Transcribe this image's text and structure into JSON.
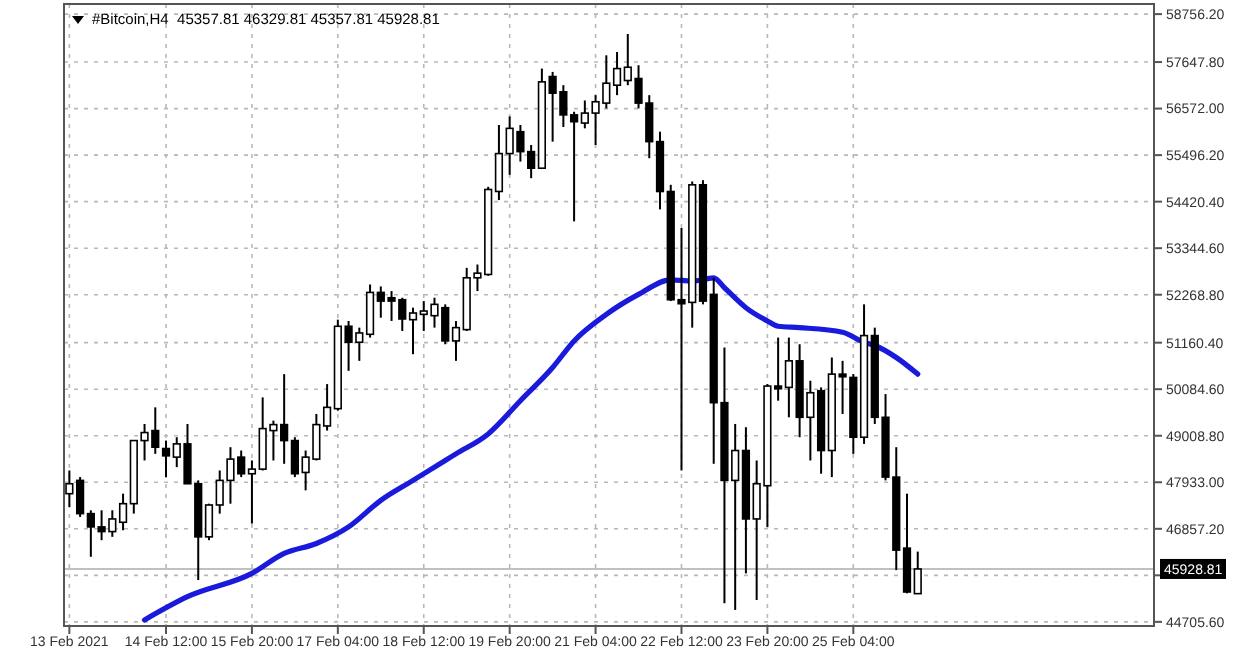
{
  "chart_data": {
    "type": "candlestick",
    "title": "#Bitcoin,H4  45357.81 46329.81 45357.81 45928.81",
    "x": [
      "2021-02-13T00:00",
      "2021-02-13T04:00",
      "2021-02-13T08:00",
      "2021-02-13T12:00",
      "2021-02-13T16:00",
      "2021-02-13T20:00",
      "2021-02-14T00:00",
      "2021-02-14T04:00",
      "2021-02-14T08:00",
      "2021-02-14T12:00",
      "2021-02-14T16:00",
      "2021-02-14T20:00",
      "2021-02-15T00:00",
      "2021-02-15T04:00",
      "2021-02-15T08:00",
      "2021-02-15T12:00",
      "2021-02-15T16:00",
      "2021-02-15T20:00",
      "2021-02-16T00:00",
      "2021-02-16T04:00",
      "2021-02-16T08:00",
      "2021-02-16T12:00",
      "2021-02-16T16:00",
      "2021-02-16T20:00",
      "2021-02-17T00:00",
      "2021-02-17T04:00",
      "2021-02-17T08:00",
      "2021-02-17T12:00",
      "2021-02-17T16:00",
      "2021-02-17T20:00",
      "2021-02-18T00:00",
      "2021-02-18T04:00",
      "2021-02-18T08:00",
      "2021-02-18T12:00",
      "2021-02-18T16:00",
      "2021-02-18T20:00",
      "2021-02-19T00:00",
      "2021-02-19T04:00",
      "2021-02-19T08:00",
      "2021-02-19T12:00",
      "2021-02-19T16:00",
      "2021-02-19T20:00",
      "2021-02-20T00:00",
      "2021-02-20T04:00",
      "2021-02-20T08:00",
      "2021-02-20T12:00",
      "2021-02-20T16:00",
      "2021-02-20T20:00",
      "2021-02-21T00:00",
      "2021-02-21T04:00",
      "2021-02-21T08:00",
      "2021-02-21T12:00",
      "2021-02-21T16:00",
      "2021-02-21T20:00",
      "2021-02-22T00:00",
      "2021-02-22T04:00",
      "2021-02-22T08:00",
      "2021-02-22T12:00",
      "2021-02-22T16:00",
      "2021-02-22T20:00",
      "2021-02-23T00:00",
      "2021-02-23T04:00",
      "2021-02-23T08:00",
      "2021-02-23T12:00",
      "2021-02-23T16:00",
      "2021-02-23T20:00",
      "2021-02-24T00:00",
      "2021-02-24T04:00",
      "2021-02-24T08:00",
      "2021-02-24T12:00",
      "2021-02-24T16:00",
      "2021-02-24T20:00",
      "2021-02-25T00:00",
      "2021-02-25T04:00",
      "2021-02-25T08:00",
      "2021-02-25T12:00",
      "2021-02-25T16:00",
      "2021-02-25T20:00",
      "2021-02-26T00:00",
      "2021-02-26T04:00"
    ],
    "ohlc": [
      [
        47669,
        48206,
        47362,
        47899
      ],
      [
        47976,
        48053,
        47131,
        47208
      ],
      [
        47208,
        47285,
        46210,
        46901
      ],
      [
        46901,
        47285,
        46594,
        46793
      ],
      [
        46793,
        47285,
        46671,
        47085
      ],
      [
        47008,
        47669,
        46824,
        47438
      ],
      [
        47438,
        48897,
        47208,
        48897
      ],
      [
        48897,
        49281,
        48437,
        49082
      ],
      [
        49128,
        49665,
        48590,
        48744
      ],
      [
        48713,
        48897,
        48053,
        48544
      ],
      [
        48514,
        48974,
        48283,
        48820
      ],
      [
        48820,
        49281,
        47899,
        47899
      ],
      [
        47899,
        47976,
        45672,
        46671
      ],
      [
        46671,
        47438,
        46594,
        47408
      ],
      [
        47408,
        48206,
        47208,
        47976
      ],
      [
        47976,
        48744,
        47438,
        48468
      ],
      [
        48514,
        48667,
        48053,
        48130
      ],
      [
        48130,
        48437,
        46978,
        48237
      ],
      [
        48237,
        49895,
        48206,
        49174
      ],
      [
        49128,
        49358,
        48437,
        49266
      ],
      [
        49266,
        50433,
        48360,
        48897
      ],
      [
        48897,
        48974,
        48053,
        48130
      ],
      [
        48160,
        48667,
        47746,
        48514
      ],
      [
        48468,
        49512,
        48437,
        49266
      ],
      [
        49235,
        50203,
        49128,
        49665
      ],
      [
        49634,
        51692,
        49588,
        51539
      ],
      [
        51539,
        51662,
        50510,
        51170
      ],
      [
        51170,
        51508,
        50740,
        51385
      ],
      [
        51354,
        52506,
        51278,
        52322
      ],
      [
        52322,
        52460,
        51738,
        52122
      ],
      [
        52199,
        52353,
        51662,
        52122
      ],
      [
        52153,
        52199,
        51431,
        51708
      ],
      [
        51692,
        51969,
        50894,
        51846
      ],
      [
        51815,
        52122,
        51431,
        51892
      ],
      [
        51784,
        52199,
        51508,
        52046
      ],
      [
        51969,
        52046,
        51124,
        51201
      ],
      [
        51201,
        51662,
        50740,
        51508
      ],
      [
        51462,
        52890,
        51431,
        52660
      ],
      [
        52660,
        52967,
        52353,
        52767
      ],
      [
        52737,
        54764,
        52706,
        54702
      ],
      [
        54656,
        56192,
        54457,
        55532
      ],
      [
        55532,
        56392,
        55040,
        56115
      ],
      [
        56038,
        56192,
        55347,
        55577
      ],
      [
        55577,
        55731,
        54963,
        55194
      ],
      [
        55194,
        57497,
        55194,
        57190
      ],
      [
        57313,
        57420,
        55808,
        56929
      ],
      [
        56960,
        57113,
        56146,
        56426
      ],
      [
        56426,
        56499,
        53965,
        56269
      ],
      [
        56238,
        56760,
        56115,
        56468
      ],
      [
        56468,
        56883,
        55731,
        56730
      ],
      [
        56699,
        57804,
        56576,
        57159
      ],
      [
        57113,
        57881,
        56883,
        57497
      ],
      [
        57221,
        58296,
        57113,
        57528
      ],
      [
        57267,
        57574,
        56576,
        56699
      ],
      [
        56699,
        56883,
        55424,
        55808
      ],
      [
        55808,
        56038,
        54242,
        54655
      ],
      [
        54655,
        54810,
        52122,
        52153
      ],
      [
        52153,
        53812,
        48206,
        52061
      ],
      [
        52092,
        54887,
        51508,
        54810
      ],
      [
        54810,
        54917,
        52046,
        52122
      ],
      [
        52276,
        52660,
        48360,
        49773
      ],
      [
        49773,
        51047,
        45135,
        47976
      ],
      [
        47976,
        49281,
        44981,
        48667
      ],
      [
        48667,
        49205,
        45826,
        47085
      ],
      [
        47085,
        48437,
        45212,
        47899
      ],
      [
        47853,
        50203,
        46901,
        50157
      ],
      [
        50157,
        51278,
        49819,
        50095
      ],
      [
        50126,
        51278,
        49435,
        50740
      ],
      [
        50740,
        51124,
        48974,
        49435
      ],
      [
        49435,
        50280,
        48437,
        50003
      ],
      [
        50049,
        50126,
        48130,
        48667
      ],
      [
        48667,
        50817,
        48053,
        50433
      ],
      [
        50433,
        50740,
        49512,
        50372
      ],
      [
        50356,
        50433,
        48590,
        48974
      ],
      [
        48974,
        52046,
        48820,
        51324
      ],
      [
        51324,
        51508,
        49281,
        49435
      ],
      [
        49435,
        49972,
        47976,
        48053
      ],
      [
        48053,
        48744,
        45902,
        46364
      ],
      [
        46410,
        47669,
        45365,
        45396
      ],
      [
        45357.81,
        46329.81,
        45357.81,
        45928.81
      ]
    ],
    "series": [
      {
        "type": "line",
        "color": "#1a1adc",
        "x": [
          "2021-02-14T04:00",
          "2021-02-14T20:00",
          "2021-02-15T20:00",
          "2021-02-16T08:00",
          "2021-02-16T20:00",
          "2021-02-17T08:00",
          "2021-02-17T20:00",
          "2021-02-18T08:00",
          "2021-02-18T20:00",
          "2021-02-19T00:00",
          "2021-02-19T12:00",
          "2021-02-20T00:00",
          "2021-02-20T12:00",
          "2021-02-20T20:00",
          "2021-02-21T08:00",
          "2021-02-21T20:00",
          "2021-02-22T08:00",
          "2021-02-22T16:00",
          "2021-02-23T00:00",
          "2021-02-23T04:00",
          "2021-02-23T12:00",
          "2021-02-23T20:00",
          "2021-02-24T00:00",
          "2021-02-24T08:00",
          "2021-02-25T00:00",
          "2021-02-25T08:00",
          "2021-02-25T12:00",
          "2021-02-25T20:00",
          "2021-02-26T04:00"
        ],
        "values": [
          44751,
          45288,
          45826,
          46287,
          46517,
          46901,
          47515,
          47976,
          48437,
          48590,
          49051,
          49819,
          50587,
          51201,
          51815,
          52276,
          52614,
          52583,
          52660,
          52430,
          51969,
          51662,
          51539,
          51508,
          51401,
          51170,
          51094,
          50817,
          50433
        ]
      }
    ],
    "xlim": [
      "2021-02-12T22:00",
      "2021-03-01T20:00"
    ],
    "xticks": [
      {
        "value": "2021-02-13T00:00",
        "label": "13 Feb 2021"
      },
      {
        "value": "2021-02-14T12:00",
        "label": "14 Feb 12:00"
      },
      {
        "value": "2021-02-15T20:00",
        "label": "15 Feb 20:00"
      },
      {
        "value": "2021-02-17T04:00",
        "label": "17 Feb 04:00"
      },
      {
        "value": "2021-02-18T12:00",
        "label": "18 Feb 12:00"
      },
      {
        "value": "2021-02-19T20:00",
        "label": "19 Feb 20:00"
      },
      {
        "value": "2021-02-21T04:00",
        "label": "21 Feb 04:00"
      },
      {
        "value": "2021-02-22T12:00",
        "label": "22 Feb 12:00"
      },
      {
        "value": "2021-02-23T20:00",
        "label": "23 Feb 20:00"
      },
      {
        "value": "2021-02-25T04:00",
        "label": "25 Feb 04:00"
      }
    ],
    "ylim": [
      44610,
      58990
    ],
    "yticks": [
      {
        "value": 44705.6,
        "label": "44705.60"
      },
      {
        "value": 45781.4,
        "label": null
      },
      {
        "value": 46857.2,
        "label": "46857.20"
      },
      {
        "value": 47933,
        "label": "47933.00"
      },
      {
        "value": 49008.8,
        "label": "49008.80"
      },
      {
        "value": 50084.6,
        "label": "50084.60"
      },
      {
        "value": 51160.4,
        "label": "51160.40"
      },
      {
        "value": 52268.8,
        "label": "52268.80"
      },
      {
        "value": 53344.6,
        "label": "53344.60"
      },
      {
        "value": 54420.4,
        "label": "54420.40"
      },
      {
        "value": 55496.2,
        "label": "55496.20"
      },
      {
        "value": 56572,
        "label": "56572.00"
      },
      {
        "value": 57647.8,
        "label": "57647.80"
      },
      {
        "value": 58756.2,
        "label": "58756.20"
      }
    ],
    "grid": true,
    "ref_lines": [
      {
        "axis": "y",
        "value": 45928.81,
        "label": "45928.81",
        "color": "#c0c0c0"
      }
    ]
  }
}
